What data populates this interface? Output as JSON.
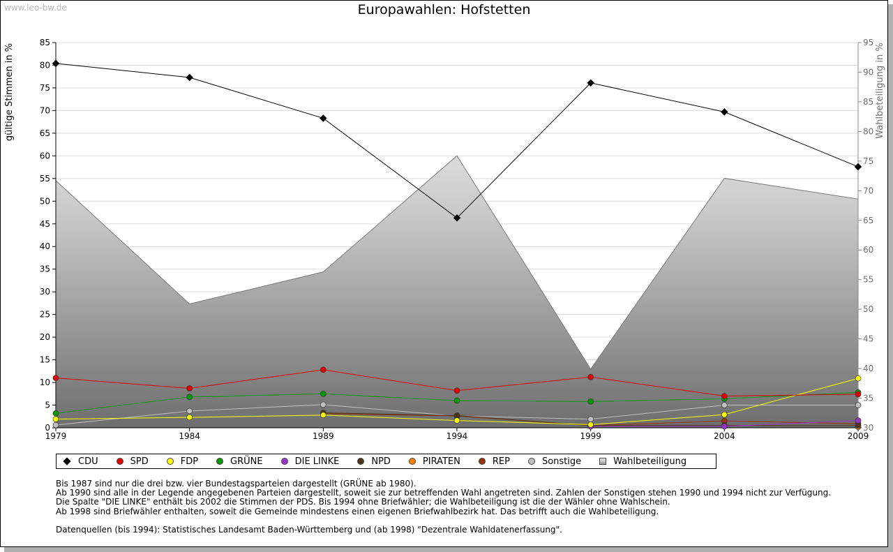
{
  "watermark": "www.leo-bw.de",
  "title": "Europawahlen: Hofstetten",
  "chart_data": {
    "type": "line",
    "title": "Europawahlen: Hofstetten",
    "x": [
      "1979",
      "1984",
      "1989",
      "1994",
      "1999",
      "2004",
      "2009"
    ],
    "ylabel": "gültige Stimmen in %",
    "ylabel_right": "Wahlbeteiligung in %",
    "ylim": [
      0,
      85
    ],
    "ylim_right": [
      30,
      95
    ],
    "yticks": [
      0,
      5,
      10,
      15,
      20,
      25,
      30,
      35,
      40,
      45,
      50,
      55,
      60,
      65,
      70,
      75,
      80,
      85
    ],
    "yticks_right": [
      30,
      35,
      40,
      45,
      50,
      55,
      60,
      65,
      70,
      75,
      80,
      85,
      90,
      95
    ],
    "grid": true,
    "series": [
      {
        "name": "CDU",
        "color": "#000000",
        "marker": "diamond",
        "values": [
          80.4,
          77.3,
          68.3,
          46.3,
          76.1,
          69.7,
          57.6
        ]
      },
      {
        "name": "SPD",
        "color": "#e00000",
        "marker": "circle",
        "values": [
          11.0,
          8.7,
          12.8,
          8.2,
          11.2,
          7.0,
          7.4
        ]
      },
      {
        "name": "FDP",
        "color": "#ffff00",
        "marker": "circle",
        "values": [
          1.9,
          2.3,
          2.8,
          1.6,
          0.7,
          2.9,
          10.9
        ]
      },
      {
        "name": "GRÜNE",
        "color": "#009900",
        "marker": "circle",
        "values": [
          3.2,
          6.8,
          7.5,
          6.0,
          5.8,
          6.4,
          7.8
        ]
      },
      {
        "name": "DIE LINKE",
        "color": "#9933cc",
        "marker": "circle",
        "values": [
          null,
          null,
          null,
          null,
          0.3,
          0.3,
          1.6
        ]
      },
      {
        "name": "NPD",
        "color": "#4d3319",
        "marker": "circle",
        "values": [
          null,
          null,
          3.3,
          2.7,
          0.5,
          0.5,
          0.5
        ]
      },
      {
        "name": "PIRATEN",
        "color": "#ff8000",
        "marker": "circle",
        "values": [
          null,
          null,
          null,
          null,
          null,
          null,
          0.2
        ]
      },
      {
        "name": "REP",
        "color": "#993300",
        "marker": "circle",
        "values": [
          null,
          null,
          3.1,
          2.6,
          0.5,
          1.5,
          0.9
        ]
      },
      {
        "name": "Sonstige",
        "color": "#c0c0c0",
        "marker": "circle",
        "values": [
          0.6,
          3.7,
          5.1,
          2.6,
          1.9,
          5.0,
          5.0
        ]
      },
      {
        "name": "Wahlbeteiligung",
        "color": "#9a9a9a",
        "marker": "square",
        "type": "area",
        "axis": "right",
        "values": [
          71.7,
          50.9,
          56.3,
          75.9,
          39.9,
          72.1,
          68.6
        ]
      }
    ]
  },
  "notes": [
    "Bis 1987 sind nur die drei bzw. vier Bundestagsparteien dargestellt (GRÜNE ab 1980).",
    "Ab 1990 sind alle in der Legende angegebenen Parteien dargestellt, soweit sie zur betreffenden Wahl angetreten sind. Zahlen der Sonstigen stehen 1990 und 1994 nicht zur Verfügung.",
    "Die Spalte \"DIE LINKE\" enthält bis 2002 die Stimmen der PDS. Bis 1994 ohne Briefwähler; die Wahlbeteiligung ist die der Wähler ohne Wahlschein.",
    "Ab 1998 sind Briefwähler enthalten, soweit die Gemeinde mindestens einen eigenen Briefwahlbezirk hat. Das betrifft auch die Wahlbeteiligung.",
    "",
    "Datenquellen (bis 1994): Statistisches Landesamt Baden-Württemberg und (ab 1998) \"Dezentrale Wahldatenerfassung\"."
  ]
}
